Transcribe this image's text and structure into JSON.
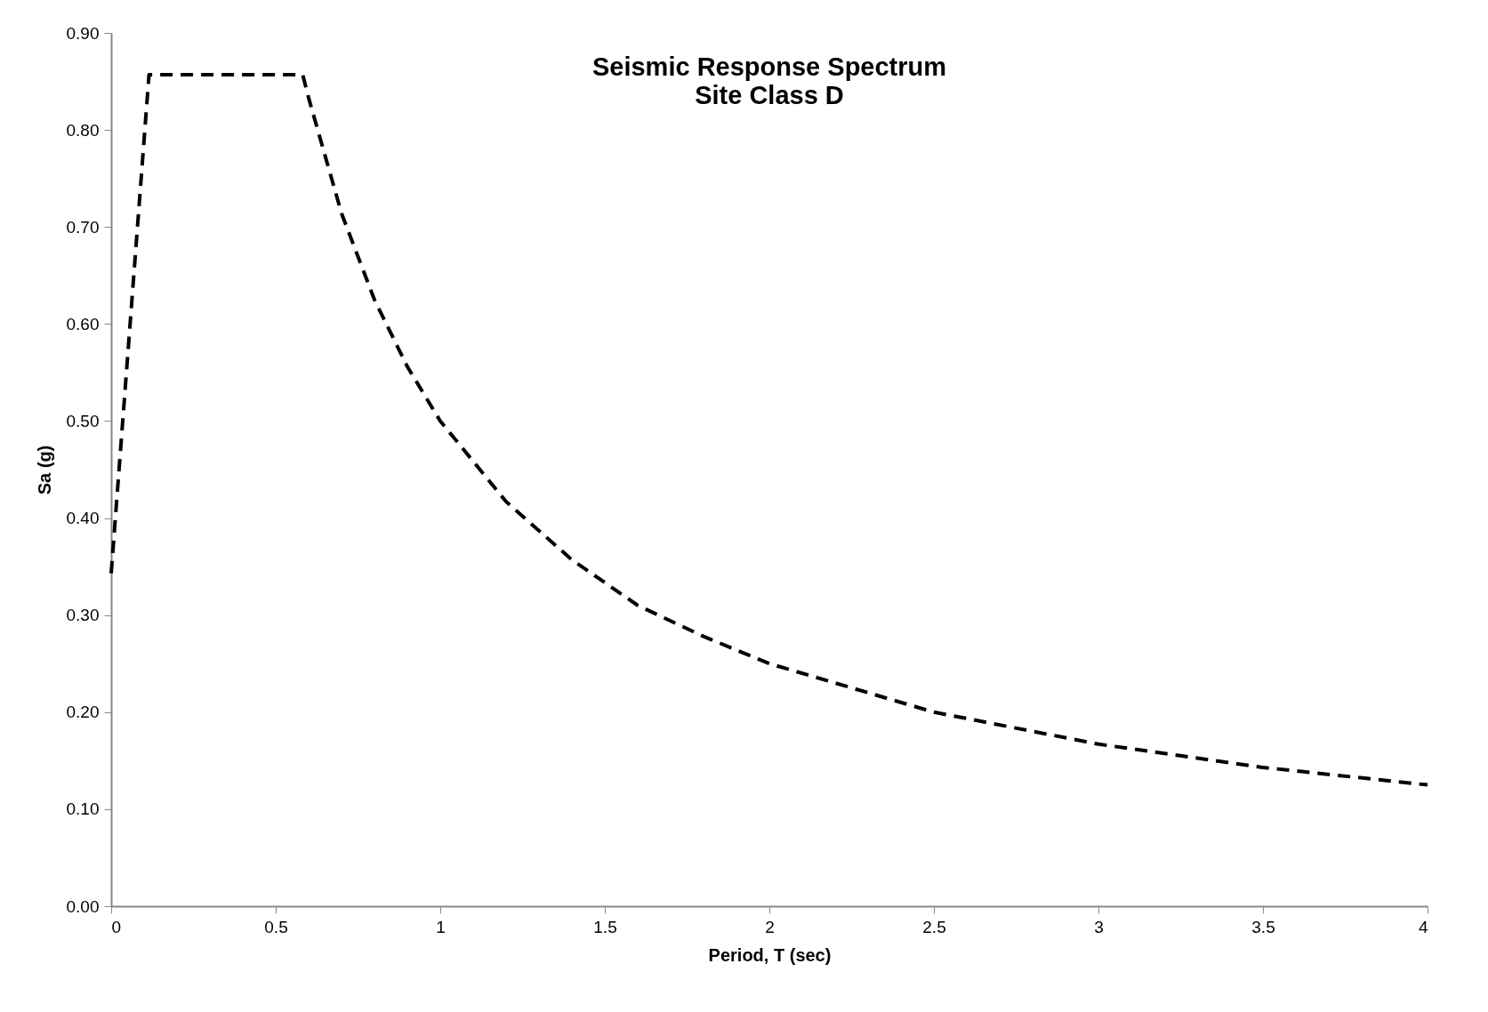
{
  "chart_data": {
    "type": "line",
    "title": "Seismic Response Spectrum",
    "subtitle": "Site Class D",
    "xlabel": "Period, T (sec)",
    "ylabel": "Sa (g)",
    "x": [
      0,
      0.115,
      0.582,
      0.6,
      0.7,
      0.8,
      0.9,
      1,
      1.2,
      1.4,
      1.6,
      1.8,
      2,
      2.5,
      3,
      3.5,
      4
    ],
    "series": [
      {
        "color": "#000000",
        "values": [
          0.343,
          0.857,
          0.857,
          0.833,
          0.714,
          0.625,
          0.556,
          0.5,
          0.417,
          0.357,
          0.31,
          0.278,
          0.25,
          0.2,
          0.167,
          0.143,
          0.125
        ]
      }
    ],
    "xlim": [
      0,
      4
    ],
    "xticks": [
      0,
      0.5,
      1,
      1.5,
      2,
      2.5,
      3,
      3.5,
      4
    ],
    "ylim": [
      0,
      0.9
    ],
    "yticks": [
      {
        "value": 0,
        "label": "0.00"
      },
      {
        "value": 0.1,
        "label": "0.10"
      },
      {
        "value": 0.2,
        "label": "0.20"
      },
      {
        "value": 0.3,
        "label": "0.30"
      },
      {
        "value": 0.4,
        "label": "0.40"
      },
      {
        "value": 0.5,
        "label": "0.50"
      },
      {
        "value": 0.6,
        "label": "0.60"
      },
      {
        "value": 0.7,
        "label": "0.70"
      },
      {
        "value": 0.8,
        "label": "0.80"
      },
      {
        "value": 0.9,
        "label": "0.90"
      }
    ],
    "grid": false,
    "marker": "none",
    "line_style": "dashed"
  }
}
